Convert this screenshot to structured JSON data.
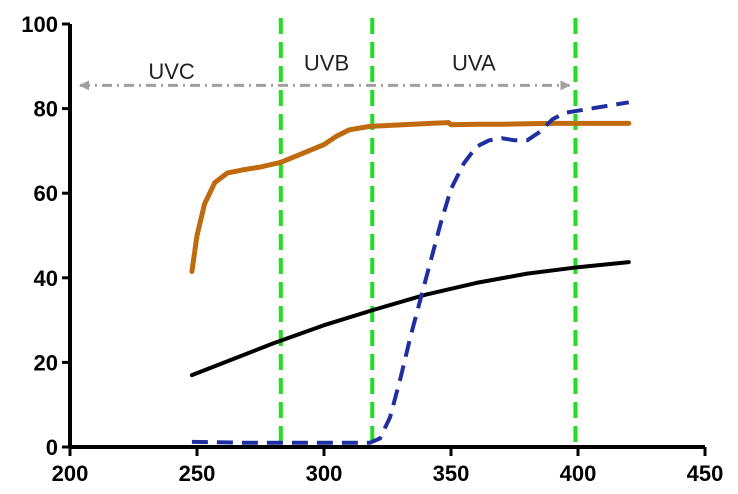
{
  "chart_data": {
    "type": "line",
    "title": "",
    "xlabel": "",
    "ylabel": "",
    "xlim": [
      200,
      450
    ],
    "ylim": [
      0,
      100
    ],
    "x_ticks": [
      200,
      250,
      300,
      350,
      400,
      450
    ],
    "y_ticks": [
      0,
      20,
      40,
      60,
      80,
      100
    ],
    "grid": false,
    "legend": "none",
    "series": [
      {
        "color": "#C06A10",
        "style": "solid",
        "x": [
          248,
          250,
          253,
          257,
          262,
          268,
          275,
          283,
          290,
          300,
          305,
          310,
          318,
          325,
          335,
          345,
          349,
          350,
          360,
          370,
          380,
          390,
          400,
          410,
          420
        ],
        "y": [
          41.5,
          50,
          57.5,
          62.5,
          64.8,
          65.5,
          66.2,
          67.3,
          69,
          71.5,
          73.5,
          75,
          75.8,
          76,
          76.3,
          76.6,
          76.7,
          76.2,
          76.3,
          76.3,
          76.4,
          76.5,
          76.5,
          76.5,
          76.5
        ]
      },
      {
        "color": "#000000",
        "style": "solid",
        "x": [
          248,
          260,
          280,
          300,
          320,
          340,
          360,
          380,
          400,
          420
        ],
        "y": [
          17,
          19.8,
          24.5,
          28.8,
          32.5,
          36,
          38.8,
          41,
          42.5,
          43.7
        ]
      },
      {
        "color": "#1F2FA0",
        "style": "dashed",
        "x": [
          248,
          270,
          300,
          318,
          322,
          326,
          330,
          334,
          338,
          342,
          346,
          350,
          355,
          360,
          365,
          370,
          375,
          380,
          385,
          390,
          395,
          400,
          410,
          420
        ],
        "y": [
          1.2,
          1,
          1,
          1,
          2,
          7,
          16,
          26,
          35,
          44,
          53,
          61,
          67,
          71,
          72.5,
          73,
          72.5,
          72.5,
          74.5,
          77.5,
          79,
          79.5,
          80.5,
          81.5
        ]
      }
    ],
    "vertical_lines": {
      "color": "#22DD22",
      "x": [
        283,
        319,
        399
      ]
    },
    "bands": [
      {
        "label": "UVC",
        "from": 200,
        "to": 283,
        "label_x": 240,
        "label_y": 87
      },
      {
        "label": "UVB",
        "from": 283,
        "to": 319,
        "label_x": 301,
        "label_y": 89
      },
      {
        "label": "UVA",
        "from": 319,
        "to": 399,
        "label_x": 359,
        "label_y": 89
      }
    ],
    "band_arrow": {
      "from": 200,
      "to": 399,
      "y": 85.5,
      "color": "#A0A0A0"
    }
  }
}
